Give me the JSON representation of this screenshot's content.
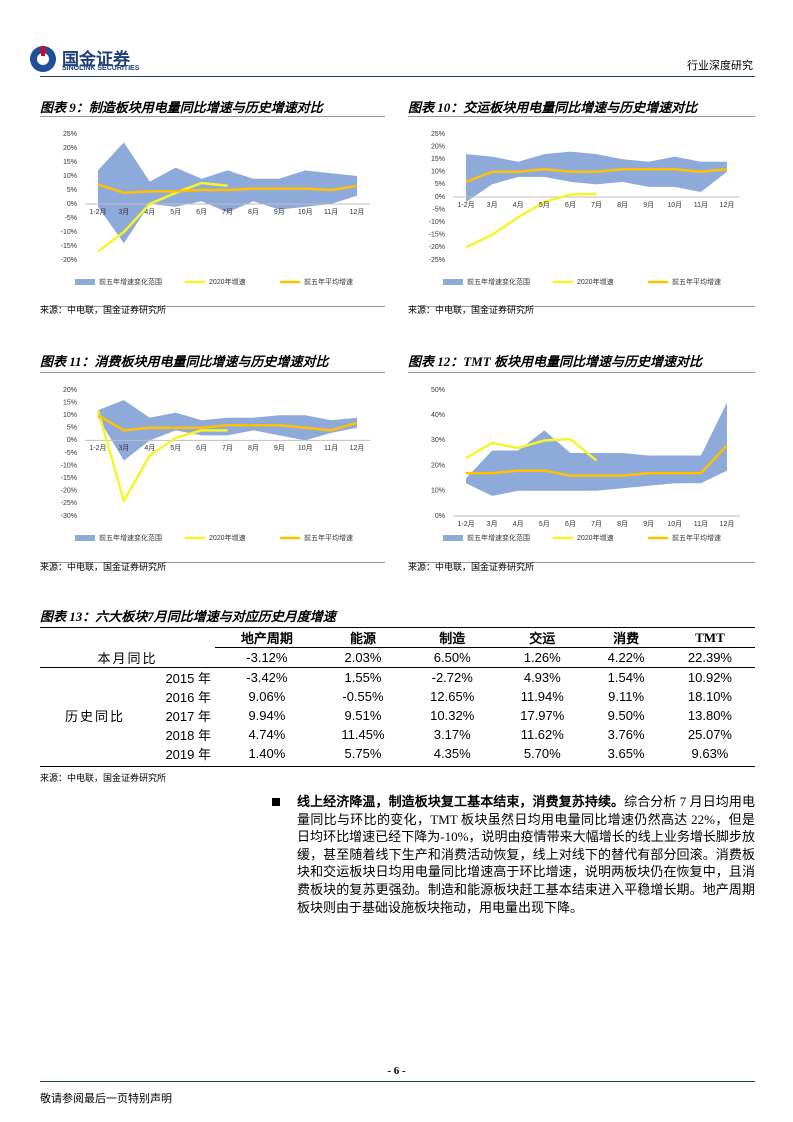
{
  "header": {
    "company": "国金证券",
    "company_en": "SINOLINK SECURITIES",
    "report_type": "行业深度研究"
  },
  "chart_data": [
    {
      "type": "line",
      "title": "图表 9：制造板块用电量同比增速与历史增速对比",
      "categories": [
        "1-2月",
        "3月",
        "4月",
        "5月",
        "6月",
        "7月",
        "8月",
        "9月",
        "10月",
        "11月",
        "12月"
      ],
      "ylim": [
        -20,
        25
      ],
      "yticks": [
        {
          "value": -20,
          "label": "-20%"
        },
        {
          "value": -15,
          "label": "-15%"
        },
        {
          "value": -10,
          "label": "-10%"
        },
        {
          "value": -5,
          "label": "-5%"
        },
        {
          "value": 0,
          "label": "0%"
        },
        {
          "value": 5,
          "label": "5%"
        },
        {
          "value": 10,
          "label": "10%"
        },
        {
          "value": 15,
          "label": "15%"
        },
        {
          "value": 20,
          "label": "20%"
        },
        {
          "value": 25,
          "label": "25%"
        }
      ],
      "series": [
        {
          "name": "前五年增速变化范围",
          "color": "#8eaadb",
          "high": [
            12,
            22,
            8,
            13,
            9,
            12,
            9,
            9,
            12,
            11,
            10
          ],
          "low": [
            -1,
            -14,
            0,
            -1,
            1,
            -3,
            1,
            -2,
            -1,
            0,
            3
          ]
        },
        {
          "name": "2020年增速",
          "color": "#f5f52a",
          "values": [
            -17,
            -10,
            0,
            4,
            7.5,
            6.5,
            null,
            null,
            null,
            null,
            null
          ]
        },
        {
          "name": "前五年平均增速",
          "color": "#ffc000",
          "values": [
            7,
            4,
            4.5,
            4.5,
            5,
            5,
            5.5,
            5.5,
            5.5,
            5,
            6.5
          ]
        }
      ],
      "source": "来源：中电联，国金证券研究所"
    },
    {
      "type": "line",
      "title": "图表 10：交运板块用电量同比增速与历史增速对比",
      "categories": [
        "1-2月",
        "3月",
        "4月",
        "5月",
        "6月",
        "7月",
        "8月",
        "9月",
        "10月",
        "11月",
        "12月"
      ],
      "ylim": [
        -25,
        25
      ],
      "yticks": [
        {
          "value": -25,
          "label": "-25%"
        },
        {
          "value": -20,
          "label": "-20%"
        },
        {
          "value": -15,
          "label": "-15%"
        },
        {
          "value": -10,
          "label": "-10%"
        },
        {
          "value": -5,
          "label": "-5%"
        },
        {
          "value": 0,
          "label": "0%"
        },
        {
          "value": 5,
          "label": "5%"
        },
        {
          "value": 10,
          "label": "10%"
        },
        {
          "value": 15,
          "label": "15%"
        },
        {
          "value": 20,
          "label": "20%"
        },
        {
          "value": 25,
          "label": "25%"
        }
      ],
      "series": [
        {
          "name": "前五年增速变化范围",
          "color": "#8eaadb",
          "high": [
            17,
            16,
            14,
            17,
            18,
            17,
            15,
            14,
            16,
            14,
            14
          ],
          "low": [
            -2,
            5,
            8,
            8,
            6,
            5,
            6,
            4,
            4,
            2,
            10
          ]
        },
        {
          "name": "2020年增速",
          "color": "#f5f52a",
          "values": [
            -20,
            -15,
            -8,
            -2,
            1,
            1.3,
            null,
            null,
            null,
            null,
            null
          ]
        },
        {
          "name": "前五年平均增速",
          "color": "#ffc000",
          "values": [
            6,
            10,
            10,
            11,
            10,
            10,
            11,
            11,
            11,
            10,
            11
          ]
        }
      ],
      "source": "来源：中电联，国金证券研究所"
    },
    {
      "type": "line",
      "title": "图表 11：消费板块用电量同比增速与历史增速对比",
      "categories": [
        "1-2月",
        "3月",
        "4月",
        "5月",
        "6月",
        "7月",
        "8月",
        "9月",
        "10月",
        "11月",
        "12月"
      ],
      "ylim": [
        -30,
        20
      ],
      "yticks": [
        {
          "value": -30,
          "label": "-30%"
        },
        {
          "value": -25,
          "label": "-25%"
        },
        {
          "value": -20,
          "label": "-20%"
        },
        {
          "value": -15,
          "label": "-15%"
        },
        {
          "value": -10,
          "label": "-10%"
        },
        {
          "value": -5,
          "label": "-5%"
        },
        {
          "value": 0,
          "label": "0%"
        },
        {
          "value": 5,
          "label": "5%"
        },
        {
          "value": 10,
          "label": "10%"
        },
        {
          "value": 15,
          "label": "15%"
        },
        {
          "value": 20,
          "label": "20%"
        }
      ],
      "series": [
        {
          "name": "前五年增速变化范围",
          "color": "#8eaadb",
          "high": [
            12,
            16,
            9,
            11,
            8,
            9,
            9,
            10,
            10,
            8,
            9
          ],
          "low": [
            9,
            -8,
            0,
            4,
            2,
            2,
            4,
            2,
            0,
            3,
            5
          ]
        },
        {
          "name": "2020年增速",
          "color": "#f5f52a",
          "values": [
            12,
            -24,
            -6,
            1,
            4,
            4,
            null,
            null,
            null,
            null,
            null
          ]
        },
        {
          "name": "前五年平均增速",
          "color": "#ffc000",
          "values": [
            10,
            4,
            5,
            5,
            5,
            6,
            6,
            6,
            5,
            4,
            7
          ]
        }
      ],
      "source": "来源：中电联，国金证券研究所"
    },
    {
      "type": "line",
      "title": "图表 12：TMT 板块用电量同比增速与历史增速对比",
      "categories": [
        "1-2月",
        "3月",
        "4月",
        "5月",
        "6月",
        "7月",
        "8月",
        "9月",
        "10月",
        "11月",
        "12月"
      ],
      "ylim": [
        0,
        50
      ],
      "yticks": [
        {
          "value": 0,
          "label": "0%"
        },
        {
          "value": 10,
          "label": "10%"
        },
        {
          "value": 20,
          "label": "20%"
        },
        {
          "value": 30,
          "label": "30%"
        },
        {
          "value": 40,
          "label": "40%"
        },
        {
          "value": 50,
          "label": "50%"
        }
      ],
      "series": [
        {
          "name": "前五年增速变化范围",
          "color": "#8eaadb",
          "high": [
            15,
            26,
            26,
            34,
            25,
            25,
            25,
            24,
            24,
            24,
            45
          ],
          "low": [
            13,
            8,
            10,
            10,
            10,
            10,
            11,
            12,
            13,
            13,
            18
          ]
        },
        {
          "name": "2020年增速",
          "color": "#f5f52a",
          "values": [
            23,
            29,
            27,
            30,
            30.5,
            22,
            null,
            null,
            null,
            null,
            null
          ]
        },
        {
          "name": "前五年平均增速",
          "color": "#ffc000",
          "values": [
            17,
            17,
            18,
            18,
            16,
            16,
            16,
            17,
            17,
            17,
            28
          ]
        }
      ],
      "source": "来源：中电联，国金证券研究所"
    }
  ],
  "table": {
    "title": "图表 13：六大板块7月同比增速与对应历史月度增速",
    "columns": [
      "地产周期",
      "能源",
      "制造",
      "交运",
      "消费",
      "TMT"
    ],
    "current": {
      "label": "本月同比",
      "cells": [
        "-3.12%",
        "2.03%",
        "6.50%",
        "1.26%",
        "4.22%",
        "22.39%"
      ]
    },
    "history": {
      "label": "历史同比",
      "rows": [
        {
          "year": "2015 年",
          "cells": [
            "-3.42%",
            "1.55%",
            "-2.72%",
            "4.93%",
            "1.54%",
            "10.92%"
          ]
        },
        {
          "year": "2016 年",
          "cells": [
            "9.06%",
            "-0.55%",
            "12.65%",
            "11.94%",
            "9.11%",
            "18.10%"
          ]
        },
        {
          "year": "2017 年",
          "cells": [
            "9.94%",
            "9.51%",
            "10.32%",
            "17.97%",
            "9.50%",
            "13.80%"
          ]
        },
        {
          "year": "2018 年",
          "cells": [
            "4.74%",
            "11.45%",
            "3.17%",
            "11.62%",
            "3.76%",
            "25.07%"
          ]
        },
        {
          "year": "2019 年",
          "cells": [
            "1.40%",
            "5.75%",
            "4.35%",
            "5.70%",
            "3.65%",
            "9.63%"
          ]
        }
      ]
    },
    "source": "来源：中电联，国金证券研究所"
  },
  "body": {
    "lead": "线上经济降温，制造板块复工基本结束，消费复苏持续。",
    "text": "综合分析 7 月日均用电量同比与环比的变化，TMT 板块虽然日均用电量同比增速仍然高达 22%，但是日均环比增速已经下降为-10%，说明由疫情带来大幅增长的线上业务增长脚步放缓，甚至随着线下生产和消费活动恢复，线上对线下的替代有部分回滚。消费板块和交运板块日均用电量同比增速高于环比增速，说明两板块仍在恢复中，且消费板块的复苏更强劲。制造和能源板块赶工基本结束进入平稳增长期。地产周期板块则由于基础设施板块拖动，用电量出现下降。"
  },
  "footer": {
    "page": "- 6 -",
    "disclaimer": "敬请参阅最后一页特别声明"
  }
}
